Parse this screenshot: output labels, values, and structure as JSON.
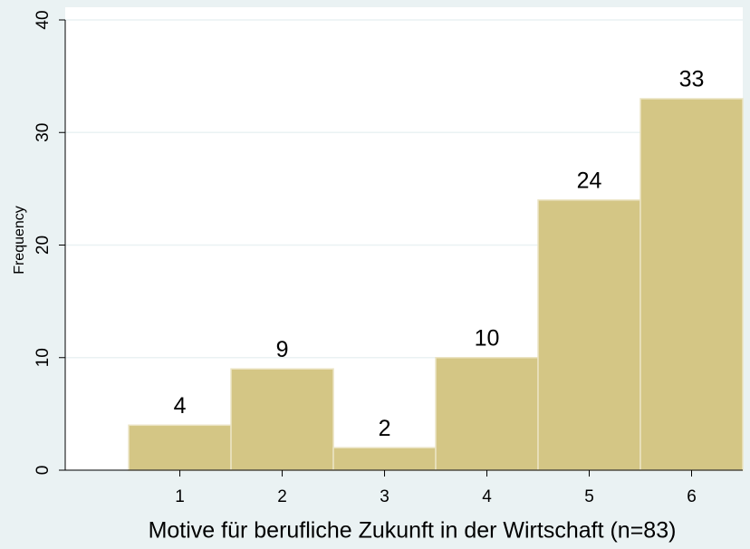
{
  "chart_data": {
    "type": "histogram",
    "x_label": "Motive für berufliche Zukunft in der Wirtschaft (n=83)",
    "y_label": "Frequency",
    "bins": [
      0.5,
      1.5,
      2.5,
      3.5,
      4.5,
      5.5,
      6.5
    ],
    "values": [
      4,
      9,
      2,
      10,
      24,
      33
    ],
    "color": "#d4c685",
    "xlim": [
      -0.12,
      6.5
    ],
    "xticks": [
      1,
      2,
      3,
      4,
      5,
      6
    ],
    "ylim": [
      0,
      40
    ],
    "yticks": [
      0,
      10,
      20,
      30,
      40
    ],
    "grid": true,
    "value_labels_shown": true
  }
}
